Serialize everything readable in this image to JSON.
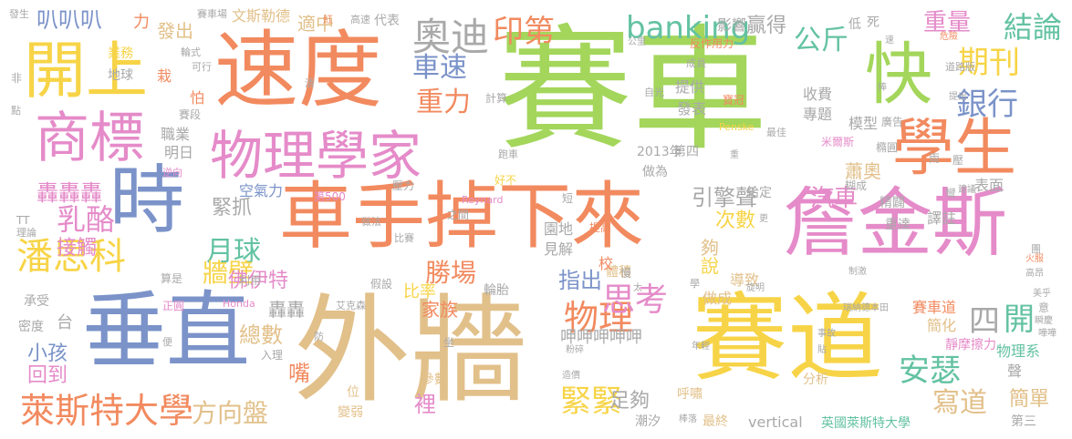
{
  "cloud": {
    "words": {
      "w1": "賽車",
      "w2": "外牆",
      "w3": "車手掉下來",
      "w4": "速度",
      "w5": "賽道",
      "w6": "詹金斯",
      "w7": "物理學家",
      "w8": "垂直",
      "w9": "時",
      "w10": "商標",
      "w11": "開上",
      "w12": "學生",
      "w13": "快",
      "w14": "奧迪",
      "w15": "印第",
      "w16": "banking",
      "w17": "期刊",
      "w18": "結論",
      "w19": "銀行",
      "w20": "公斤",
      "w21": "車速",
      "w22": "重力",
      "w23": "潘思科",
      "w24": "乳酪",
      "w25": "萊斯特大學",
      "w26": "物理",
      "w27": "安瑟",
      "w28": "思考",
      "w29": "緊緊",
      "w30": "方向盤",
      "w31": "轟轟轟",
      "w32": "月球",
      "w33": "引擎聲",
      "w34": "汽車",
      "w35": "開",
      "w36": "四",
      "w37": "寫道",
      "w38": "重量",
      "w39": "贏得",
      "w40": "叭叭叭",
      "w41": "發出",
      "w42": "適中",
      "w43": "牆壁",
      "w44": "緊抓",
      "w45": "佛伊特",
      "w46": "勝場",
      "w47": "指出",
      "w48": "次數",
      "w49": "家族",
      "w50": "小孩",
      "w51": "回到",
      "w52": "總數",
      "w53": "嘴",
      "w54": "裡",
      "w55": "足夠",
      "w56": "轟轟",
      "w57": "說",
      "w58": "夠",
      "w59": "蕭奧",
      "w60": "收費",
      "w61": "專題",
      "w62": "模型",
      "w63": "提供",
      "w64": "發表",
      "w65": "職業",
      "w66": "明日",
      "w67": "空氣力",
      "w68": "2013年",
      "w69": "第四",
      "w70": "做為",
      "w71": "接觸",
      "w72": "台",
      "w73": "比率",
      "w74": "園地",
      "w75": "見解",
      "w76": "輪胎",
      "w77": "體積",
      "w78": "做成",
      "w79": "導致",
      "w80": "簡單",
      "w81": "分析",
      "w82": "vertical",
      "w83": "英國萊斯特大學",
      "w84": "第三",
      "w85": "物理系",
      "w86": "靜摩擦力",
      "w87": "簡化",
      "w88": "賽車道",
      "w89": "譯註",
      "w90": "重達",
      "w91": "精闢",
      "w92": "給定",
      "w93": "表面",
      "w94": "文斯勒德",
      "w95": "力",
      "w96": "影響",
      "w97": "代表",
      "w98": "低",
      "w99": "死",
      "w100": "業務",
      "w101": "地球",
      "w102": "栽",
      "w103": "怕",
      "w104": "賽段",
      "w105": "計算",
      "w106": "最終",
      "w107": "呼嘯",
      "w108": "參數",
      "w109": "位",
      "w110": "變弱",
      "w111": "潮汐",
      "w112": "反作用力",
      "w113": "米爾斯",
      "w114": "廣告",
      "w115": "糊成",
      "w116": "橢圓",
      "w117": "密度",
      "w118": "承受",
      "w119": "算是",
      "w120": "利用",
      "w121": "假設",
      "w122": "提高",
      "w123": "校",
      "w124": "慢",
      "w125": "寶冠",
      "w126": "Penske",
      "w127": "最佳",
      "w128": "壓力",
      "w129": "短",
      "w130": "之間",
      "w131": "第500",
      "w132": "好不",
      "w133": "跑車",
      "w134": "正圓",
      "w135": "入理",
      "w136": "坐",
      "w137": "艾克森",
      "w138": "Honda",
      "w139": "防",
      "w140": "理論",
      "w141": "TT",
      "w142": "逆向",
      "w143": "做法",
      "w144": "比賽",
      "w145": "Reynard",
      "w146": "發生",
      "w147": "可行",
      "w148": "輪式",
      "w149": "高速",
      "w150": "賽車場",
      "w151": "非",
      "w152": "點",
      "w153": "清",
      "w154": "成員",
      "w155": "自光",
      "w156": "公里",
      "w157": "道路版",
      "w158": "危險",
      "w159": "提出",
      "w160": "速",
      "w161": "捧",
      "w162": "重",
      "w163": "更",
      "w164": "兩",
      "w165": "壓",
      "w166": "彎",
      "w167": "建議",
      "w168": "火服",
      "w169": "團",
      "w170": "高昂",
      "w171": "美乎",
      "w172": "意",
      "w173": "瞬慶",
      "w174": "事故",
      "w175": "貼",
      "w176": "瑞納德本田",
      "w177": "制激",
      "w178": "學",
      "w179": "太",
      "w180": "年輕",
      "w181": "粉碎",
      "w182": "造價",
      "w183": "棒落",
      "w184": "旋明",
      "w185": "便",
      "w186": "嘩嘩",
      "w187": "呷呷呷呷呷",
      "w188": "聲",
      "w189": "紅"
    }
  }
}
